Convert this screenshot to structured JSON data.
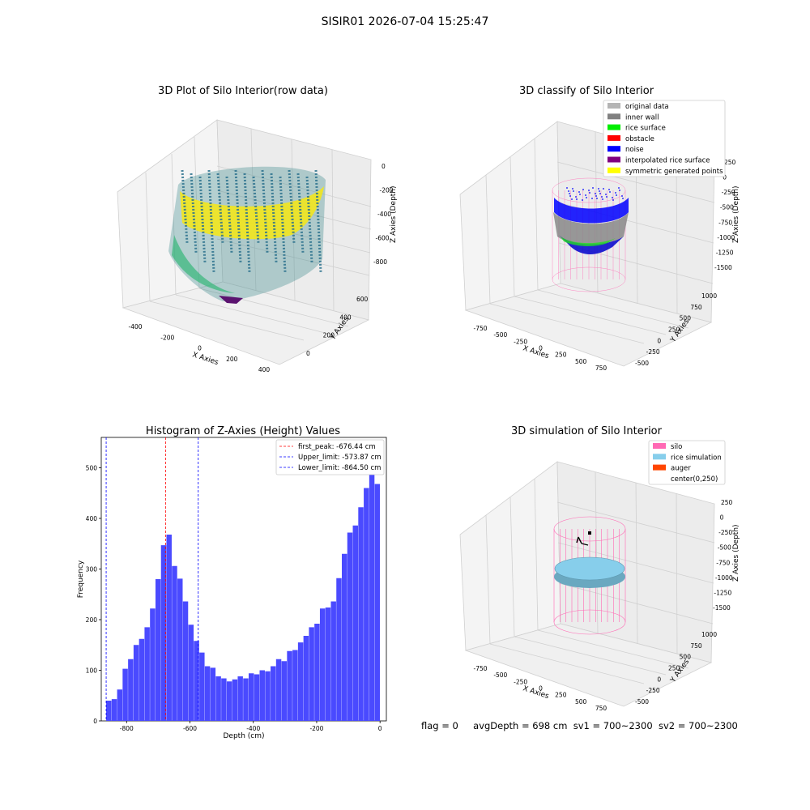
{
  "figure_title": "SISIR01 2026-07-04 15:25:47",
  "status": {
    "flag": "flag = 0",
    "avg_depth": "avgDepth = 698 cm",
    "sv1": "sv1 = 700~2300",
    "sv2": "sv2 = 700~2300"
  },
  "colors": {
    "original": "#b4b4b4",
    "inner_wall": "#808080",
    "rice_surface": "#00ee00",
    "obstacle": "#ff0000",
    "noise": "#0000ff",
    "interpolated": "#800080",
    "symmetric": "#ffff00",
    "silo": "#ff69b4",
    "rice_sim": "#87ceeb",
    "auger": "#ff4500",
    "hist_bar": "#4a4aff"
  },
  "chart_data": [
    {
      "type": "scatter",
      "projection": "3d",
      "title": "3D Plot of Silo Interior(row data)",
      "xlabel": "X Axies",
      "ylabel": "Y Axies",
      "zlabel": "Z Axies (Depth)",
      "xticks": [
        "-400",
        "-200",
        "0",
        "200",
        "400"
      ],
      "yticks": [
        "0",
        "200",
        "400",
        "600"
      ],
      "zticks": [
        "0",
        "-200",
        "-400",
        "-600",
        "-800"
      ],
      "xlim": [
        -450,
        450
      ],
      "ylim": [
        -100,
        700
      ],
      "zlim": [
        -900,
        0
      ],
      "colormap": "viridis"
    },
    {
      "type": "scatter",
      "projection": "3d",
      "title": "3D classify of Silo Interior",
      "xlabel": "X Axies",
      "ylabel": "Y Axies",
      "zlabel": "Z Axies (Depth)",
      "xticks": [
        "-750",
        "-500",
        "-250",
        "0",
        "250",
        "500",
        "750"
      ],
      "yticks": [
        "-500",
        "-250",
        "0",
        "250",
        "500",
        "750",
        "1000"
      ],
      "zticks": [
        "250",
        "0",
        "-250",
        "-500",
        "-750",
        "-1000",
        "-1250",
        "-1500"
      ],
      "legend": [
        "original data",
        "inner wall",
        "rice surface",
        "obstacle",
        "noise",
        "interpolated rice surface",
        "symmetric generated points"
      ],
      "legend_position": "top-right"
    },
    {
      "type": "bar",
      "title": "Histogram of Z-Axies (Height) Values",
      "xlabel": "Depth (cm)",
      "ylabel": "Frequency",
      "xlim": [
        -880,
        20
      ],
      "ylim": [
        0,
        560
      ],
      "xticks": [
        "-800",
        "-600",
        "-400",
        "-200",
        "0"
      ],
      "yticks": [
        "0",
        "100",
        "200",
        "300",
        "400",
        "500"
      ],
      "bin_start": -864.5,
      "bin_width": 17.3,
      "values": [
        40,
        43,
        62,
        103,
        122,
        150,
        162,
        185,
        222,
        280,
        347,
        368,
        306,
        281,
        236,
        190,
        158,
        135,
        108,
        105,
        88,
        84,
        78,
        82,
        88,
        84,
        94,
        92,
        100,
        98,
        108,
        122,
        118,
        138,
        140,
        155,
        168,
        185,
        192,
        222,
        224,
        236,
        282,
        330,
        372,
        386,
        422,
        460,
        552,
        468
      ],
      "vlines": [
        {
          "label": "first_peak: -676.44 cm",
          "value": -676.44,
          "color": "#ff0000"
        },
        {
          "label": "Upper_limit: -573.87 cm",
          "value": -573.87,
          "color": "#0000ff"
        },
        {
          "label": "Lower_limit: -864.50 cm",
          "value": -864.5,
          "color": "#0000ff"
        }
      ],
      "legend_position": "top-right"
    },
    {
      "type": "scatter",
      "projection": "3d",
      "title": "3D simulation of Silo Interior",
      "xlabel": "X Axies",
      "ylabel": "Y Axies",
      "zlabel": "Z Axies (Depth)",
      "xticks": [
        "-750",
        "-500",
        "-250",
        "0",
        "250",
        "500",
        "750"
      ],
      "yticks": [
        "-500",
        "-250",
        "0",
        "250",
        "500",
        "750",
        "1000"
      ],
      "zticks": [
        "250",
        "0",
        "-250",
        "-500",
        "-750",
        "-1000",
        "-1250",
        "-1500"
      ],
      "legend": [
        "silo",
        "rice simulation",
        "auger",
        "center(0,250)"
      ],
      "legend_position": "top-right"
    }
  ]
}
